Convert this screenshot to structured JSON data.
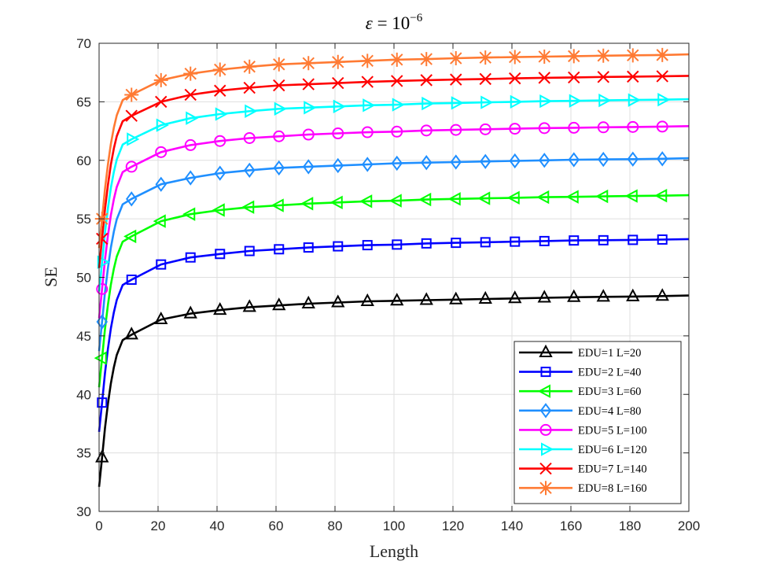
{
  "chart_data": {
    "type": "line",
    "title_symbol": "ε",
    "title_rest": " = 10",
    "title_exponent": "−6",
    "xlabel": "Length",
    "ylabel": "SE",
    "xlim": [
      0,
      200
    ],
    "ylim": [
      30,
      70
    ],
    "xticks": [
      0,
      20,
      40,
      60,
      80,
      100,
      120,
      140,
      160,
      180,
      200
    ],
    "yticks": [
      30,
      35,
      40,
      45,
      50,
      55,
      60,
      65,
      70
    ],
    "grid": true,
    "legend_position": "bottom-right",
    "marker_x": [
      1,
      11,
      21,
      31,
      41,
      51,
      61,
      71,
      81,
      91,
      101,
      111,
      121,
      131,
      141,
      151,
      161,
      171,
      181,
      191
    ],
    "series": [
      {
        "name": "EDU=1 L=20",
        "color": "#000000",
        "marker": "triangle-up",
        "values": [
          34.6,
          45.1,
          46.4,
          46.9,
          47.2,
          47.45,
          47.6,
          47.75,
          47.85,
          47.95,
          48.0,
          48.05,
          48.1,
          48.15,
          48.2,
          48.25,
          48.3,
          48.33,
          48.36,
          48.4
        ],
        "end": 48.45
      },
      {
        "name": "EDU=2 L=40",
        "color": "#0000ff",
        "marker": "square",
        "values": [
          39.3,
          49.8,
          51.1,
          51.7,
          52.0,
          52.25,
          52.4,
          52.55,
          52.65,
          52.75,
          52.8,
          52.9,
          52.95,
          53.0,
          53.05,
          53.1,
          53.15,
          53.17,
          53.2,
          53.23
        ],
        "end": 53.27
      },
      {
        "name": "EDU=3 L=60",
        "color": "#00ff00",
        "marker": "triangle-left",
        "values": [
          43.1,
          53.5,
          54.8,
          55.4,
          55.75,
          56.0,
          56.15,
          56.3,
          56.4,
          56.5,
          56.55,
          56.65,
          56.7,
          56.75,
          56.8,
          56.85,
          56.88,
          56.92,
          56.95,
          56.98
        ],
        "end": 57.02
      },
      {
        "name": "EDU=4 L=80",
        "color": "#1f8fff",
        "marker": "diamond",
        "values": [
          46.2,
          56.7,
          57.95,
          58.5,
          58.9,
          59.15,
          59.35,
          59.45,
          59.55,
          59.65,
          59.75,
          59.8,
          59.85,
          59.9,
          59.95,
          60.0,
          60.05,
          60.08,
          60.1,
          60.13
        ],
        "end": 60.18
      },
      {
        "name": "EDU=5 L=100",
        "color": "#ff00ff",
        "marker": "circle",
        "values": [
          49.0,
          59.45,
          60.7,
          61.3,
          61.65,
          61.9,
          62.05,
          62.2,
          62.3,
          62.4,
          62.45,
          62.55,
          62.6,
          62.65,
          62.7,
          62.75,
          62.78,
          62.82,
          62.85,
          62.88
        ],
        "end": 62.92
      },
      {
        "name": "EDU=6 L=120",
        "color": "#00ffff",
        "marker": "triangle-right",
        "values": [
          51.3,
          61.8,
          63.0,
          63.6,
          63.95,
          64.2,
          64.4,
          64.5,
          64.6,
          64.7,
          64.75,
          64.85,
          64.9,
          64.95,
          65.0,
          65.05,
          65.08,
          65.12,
          65.15,
          65.18
        ],
        "end": 65.22
      },
      {
        "name": "EDU=7 L=140",
        "color": "#ff0000",
        "marker": "x",
        "values": [
          53.3,
          63.8,
          65.0,
          65.6,
          65.95,
          66.2,
          66.4,
          66.5,
          66.6,
          66.7,
          66.78,
          66.85,
          66.9,
          66.95,
          67.0,
          67.05,
          67.08,
          67.12,
          67.15,
          67.18
        ],
        "end": 67.22
      },
      {
        "name": "EDU=8 L=160",
        "color": "#ff7a33",
        "marker": "asterisk",
        "values": [
          55.0,
          65.6,
          66.85,
          67.4,
          67.75,
          68.0,
          68.2,
          68.3,
          68.4,
          68.5,
          68.6,
          68.65,
          68.72,
          68.78,
          68.82,
          68.86,
          68.9,
          68.94,
          68.97,
          69.0
        ],
        "end": 69.05
      }
    ]
  }
}
